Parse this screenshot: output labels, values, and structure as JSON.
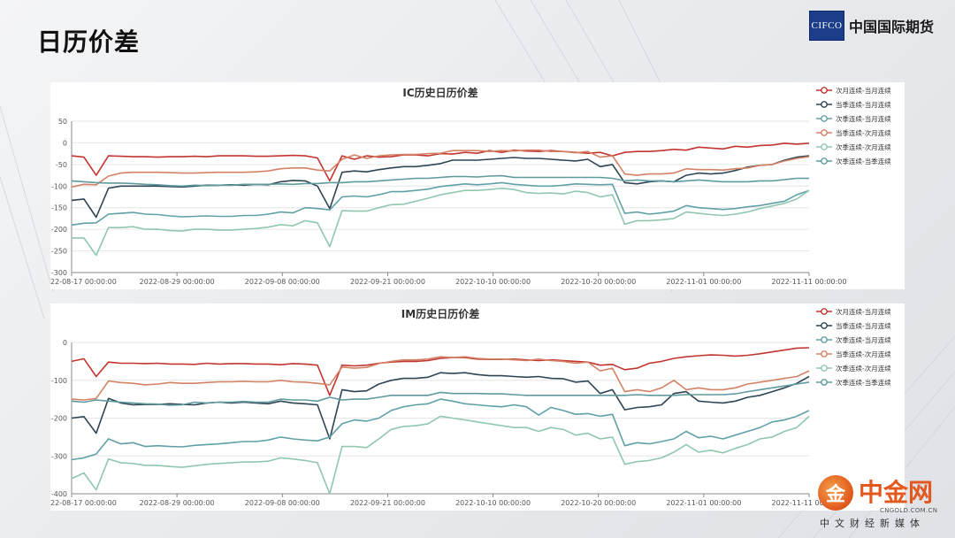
{
  "page": {
    "title": "日历价差"
  },
  "logo": {
    "mark": "CIFCO",
    "name": "中国国际期货"
  },
  "watermark": {
    "glyph": "金",
    "name": "中金网",
    "url": "CNGOLD.COM.CN",
    "subtitle": "中文财经新媒体"
  },
  "colors": {
    "series": [
      "#c23531",
      "#2f4554",
      "#61a0a8",
      "#d48265",
      "#91c7ae",
      "#5f9a9e"
    ]
  },
  "chart_data": [
    {
      "type": "line",
      "title": "IC历史日历价差",
      "x_tick_labels": [
        "22-08-17 00:00:00",
        "2022-08-29 00:00:00",
        "2022-09-08 00:00:00",
        "2022-09-21 00:00:00",
        "2022-10-10 00:00:00",
        "2022-10-20 00:00:00",
        "2022-11-01 00:00:00",
        "2022-11-11 00:00:00"
      ],
      "ylim": [
        -300,
        50
      ],
      "y_ticks": [
        50,
        0,
        -50,
        -100,
        -150,
        -200,
        -250,
        -300
      ],
      "grid": true,
      "legend": "top-right",
      "series": [
        {
          "name": "次月连续-当月连续",
          "values": [
            -30,
            -33,
            -75,
            -30,
            -31,
            -32,
            -32,
            -33,
            -32,
            -32,
            -31,
            -32,
            -30,
            -30,
            -30,
            -31,
            -31,
            -30,
            -29,
            -30,
            -35,
            -88,
            -30,
            -38,
            -30,
            -33,
            -32,
            -28,
            -28,
            -30,
            -25,
            -26,
            -22,
            -24,
            -18,
            -22,
            -17,
            -19,
            -20,
            -18,
            -20,
            -22,
            -24,
            -22,
            -30,
            -22,
            -20,
            -20,
            -18,
            -15,
            -17,
            -10,
            -12,
            -14,
            -8,
            -10,
            -6,
            -5,
            -1,
            -3,
            -1
          ]
        },
        {
          "name": "当季连续-当月连续",
          "values": [
            -133,
            -130,
            -172,
            -105,
            -100,
            -100,
            -100,
            -100,
            -101,
            -102,
            -100,
            -98,
            -98,
            -97,
            -98,
            -96,
            -97,
            -90,
            -87,
            -88,
            -100,
            -152,
            -68,
            -65,
            -67,
            -62,
            -58,
            -55,
            -55,
            -52,
            -48,
            -40,
            -40,
            -40,
            -38,
            -36,
            -34,
            -36,
            -36,
            -38,
            -40,
            -42,
            -38,
            -55,
            -50,
            -92,
            -95,
            -90,
            -88,
            -90,
            -75,
            -70,
            -72,
            -70,
            -64,
            -56,
            -52,
            -50,
            -40,
            -33,
            -30
          ]
        },
        {
          "name": "次季连续-当月连续",
          "values": [
            -190,
            -186,
            -185,
            -165,
            -163,
            -161,
            -165,
            -166,
            -169,
            -171,
            -170,
            -169,
            -170,
            -170,
            -168,
            -168,
            -165,
            -160,
            -162,
            -150,
            -152,
            -155,
            -125,
            -123,
            -125,
            -120,
            -113,
            -113,
            -110,
            -107,
            -101,
            -98,
            -95,
            -97,
            -95,
            -92,
            -96,
            -98,
            -100,
            -100,
            -98,
            -95,
            -96,
            -97,
            -96,
            -163,
            -160,
            -165,
            -162,
            -158,
            -145,
            -150,
            -152,
            -154,
            -152,
            -148,
            -145,
            -140,
            -135,
            -120,
            -110
          ]
        },
        {
          "name": "当季连续-次月连续",
          "values": [
            -102,
            -96,
            -97,
            -77,
            -70,
            -68,
            -68,
            -68,
            -69,
            -70,
            -70,
            -69,
            -68,
            -68,
            -68,
            -67,
            -65,
            -60,
            -58,
            -58,
            -63,
            -65,
            -38,
            -28,
            -36,
            -30,
            -28,
            -27,
            -27,
            -25,
            -24,
            -18,
            -18,
            -18,
            -20,
            -18,
            -19,
            -17,
            -17,
            -20,
            -20,
            -23,
            -20,
            -33,
            -30,
            -72,
            -75,
            -72,
            -72,
            -70,
            -60,
            -62,
            -62,
            -63,
            -60,
            -58,
            -52,
            -50,
            -42,
            -36,
            -32
          ]
        },
        {
          "name": "次季连续-次月连续",
          "values": [
            -220,
            -220,
            -260,
            -196,
            -196,
            -194,
            -200,
            -200,
            -203,
            -204,
            -200,
            -200,
            -202,
            -202,
            -200,
            -198,
            -195,
            -189,
            -192,
            -180,
            -185,
            -240,
            -157,
            -158,
            -158,
            -150,
            -143,
            -142,
            -135,
            -128,
            -120,
            -115,
            -110,
            -110,
            -108,
            -105,
            -108,
            -115,
            -117,
            -116,
            -118,
            -112,
            -115,
            -125,
            -120,
            -188,
            -180,
            -180,
            -178,
            -175,
            -160,
            -163,
            -166,
            -168,
            -165,
            -160,
            -152,
            -146,
            -140,
            -130,
            -110
          ]
        },
        {
          "name": "次季连续-当季连续",
          "values": [
            -88,
            -90,
            -92,
            -93,
            -93,
            -94,
            -96,
            -97,
            -99,
            -100,
            -98,
            -99,
            -98,
            -98,
            -96,
            -96,
            -96,
            -95,
            -96,
            -94,
            -94,
            -92,
            -92,
            -90,
            -90,
            -88,
            -86,
            -84,
            -82,
            -82,
            -80,
            -78,
            -78,
            -79,
            -77,
            -76,
            -80,
            -80,
            -80,
            -80,
            -80,
            -80,
            -80,
            -80,
            -82,
            -88,
            -86,
            -88,
            -88,
            -90,
            -88,
            -86,
            -88,
            -90,
            -90,
            -90,
            -88,
            -88,
            -85,
            -82,
            -82
          ]
        }
      ]
    },
    {
      "type": "line",
      "title": "IM历史日历价差",
      "x_tick_labels": [
        "22-08-17 00:00:00",
        "2022-08-29 00:00:00",
        "2022-09-08 00:00:00",
        "2022-09-21 00:00:00",
        "2022-10-10 00:00:00",
        "2022-10-20 00:00:00",
        "2022-11-01 00:00:00",
        "2022-11-11 00:00:00"
      ],
      "ylim": [
        -400,
        0
      ],
      "y_ticks": [
        0,
        -100,
        -200,
        -300,
        -400
      ],
      "grid": true,
      "legend": "top-right",
      "series": [
        {
          "name": "次月连续-当月连续",
          "values": [
            -50,
            -43,
            -90,
            -52,
            -55,
            -55,
            -56,
            -55,
            -57,
            -57,
            -58,
            -55,
            -57,
            -56,
            -56,
            -57,
            -57,
            -59,
            -56,
            -57,
            -60,
            -140,
            -60,
            -62,
            -60,
            -55,
            -52,
            -50,
            -50,
            -48,
            -42,
            -40,
            -40,
            -44,
            -45,
            -45,
            -44,
            -46,
            -48,
            -46,
            -48,
            -50,
            -52,
            -60,
            -58,
            -72,
            -68,
            -55,
            -50,
            -42,
            -38,
            -35,
            -33,
            -34,
            -36,
            -34,
            -30,
            -25,
            -20,
            -15,
            -14
          ]
        },
        {
          "name": "当季连续-当月连续",
          "values": [
            -200,
            -196,
            -240,
            -148,
            -160,
            -165,
            -164,
            -164,
            -162,
            -164,
            -165,
            -160,
            -158,
            -160,
            -158,
            -160,
            -162,
            -155,
            -160,
            -162,
            -165,
            -255,
            -125,
            -130,
            -128,
            -110,
            -100,
            -95,
            -95,
            -92,
            -80,
            -82,
            -80,
            -85,
            -88,
            -88,
            -90,
            -92,
            -90,
            -95,
            -96,
            -105,
            -102,
            -135,
            -125,
            -178,
            -172,
            -170,
            -165,
            -135,
            -130,
            -155,
            -158,
            -160,
            -155,
            -145,
            -140,
            -130,
            -120,
            -108,
            -90
          ]
        },
        {
          "name": "次季连续-当月连续",
          "values": [
            -310,
            -305,
            -295,
            -255,
            -268,
            -265,
            -275,
            -273,
            -275,
            -276,
            -272,
            -270,
            -268,
            -265,
            -262,
            -262,
            -258,
            -250,
            -255,
            -258,
            -260,
            -250,
            -215,
            -205,
            -208,
            -200,
            -180,
            -170,
            -165,
            -162,
            -150,
            -155,
            -162,
            -165,
            -168,
            -170,
            -165,
            -170,
            -192,
            -172,
            -180,
            -190,
            -188,
            -195,
            -190,
            -273,
            -265,
            -268,
            -262,
            -255,
            -235,
            -252,
            -248,
            -255,
            -245,
            -235,
            -225,
            -210,
            -205,
            -195,
            -180
          ]
        },
        {
          "name": "当季连续-次月连续",
          "values": [
            -150,
            -152,
            -148,
            -102,
            -106,
            -108,
            -112,
            -110,
            -106,
            -108,
            -108,
            -106,
            -104,
            -104,
            -103,
            -104,
            -104,
            -100,
            -104,
            -105,
            -108,
            -112,
            -65,
            -68,
            -66,
            -56,
            -50,
            -46,
            -46,
            -44,
            -38,
            -40,
            -38,
            -42,
            -44,
            -44,
            -46,
            -48,
            -44,
            -48,
            -50,
            -55,
            -52,
            -75,
            -68,
            -130,
            -125,
            -130,
            -120,
            -100,
            -125,
            -120,
            -125,
            -125,
            -120,
            -110,
            -105,
            -100,
            -95,
            -90,
            -75
          ]
        },
        {
          "name": "次季连续-次月连续",
          "values": [
            -360,
            -345,
            -390,
            -308,
            -318,
            -320,
            -325,
            -325,
            -328,
            -330,
            -326,
            -322,
            -320,
            -318,
            -316,
            -316,
            -314,
            -305,
            -308,
            -312,
            -318,
            -400,
            -275,
            -275,
            -278,
            -255,
            -230,
            -222,
            -220,
            -215,
            -195,
            -200,
            -205,
            -210,
            -215,
            -220,
            -225,
            -225,
            -235,
            -225,
            -230,
            -245,
            -240,
            -255,
            -250,
            -322,
            -315,
            -312,
            -305,
            -290,
            -270,
            -290,
            -285,
            -292,
            -280,
            -270,
            -255,
            -250,
            -235,
            -225,
            -195
          ]
        },
        {
          "name": "次季连续-当季连续",
          "values": [
            -155,
            -158,
            -152,
            -155,
            -158,
            -160,
            -162,
            -163,
            -166,
            -165,
            -158,
            -160,
            -158,
            -158,
            -156,
            -158,
            -158,
            -150,
            -152,
            -152,
            -155,
            -145,
            -152,
            -150,
            -150,
            -145,
            -140,
            -140,
            -140,
            -140,
            -132,
            -135,
            -135,
            -135,
            -136,
            -136,
            -138,
            -140,
            -140,
            -140,
            -140,
            -140,
            -140,
            -140,
            -140,
            -140,
            -138,
            -140,
            -140,
            -140,
            -138,
            -138,
            -138,
            -138,
            -136,
            -130,
            -125,
            -120,
            -115,
            -110,
            -105
          ]
        }
      ]
    }
  ]
}
